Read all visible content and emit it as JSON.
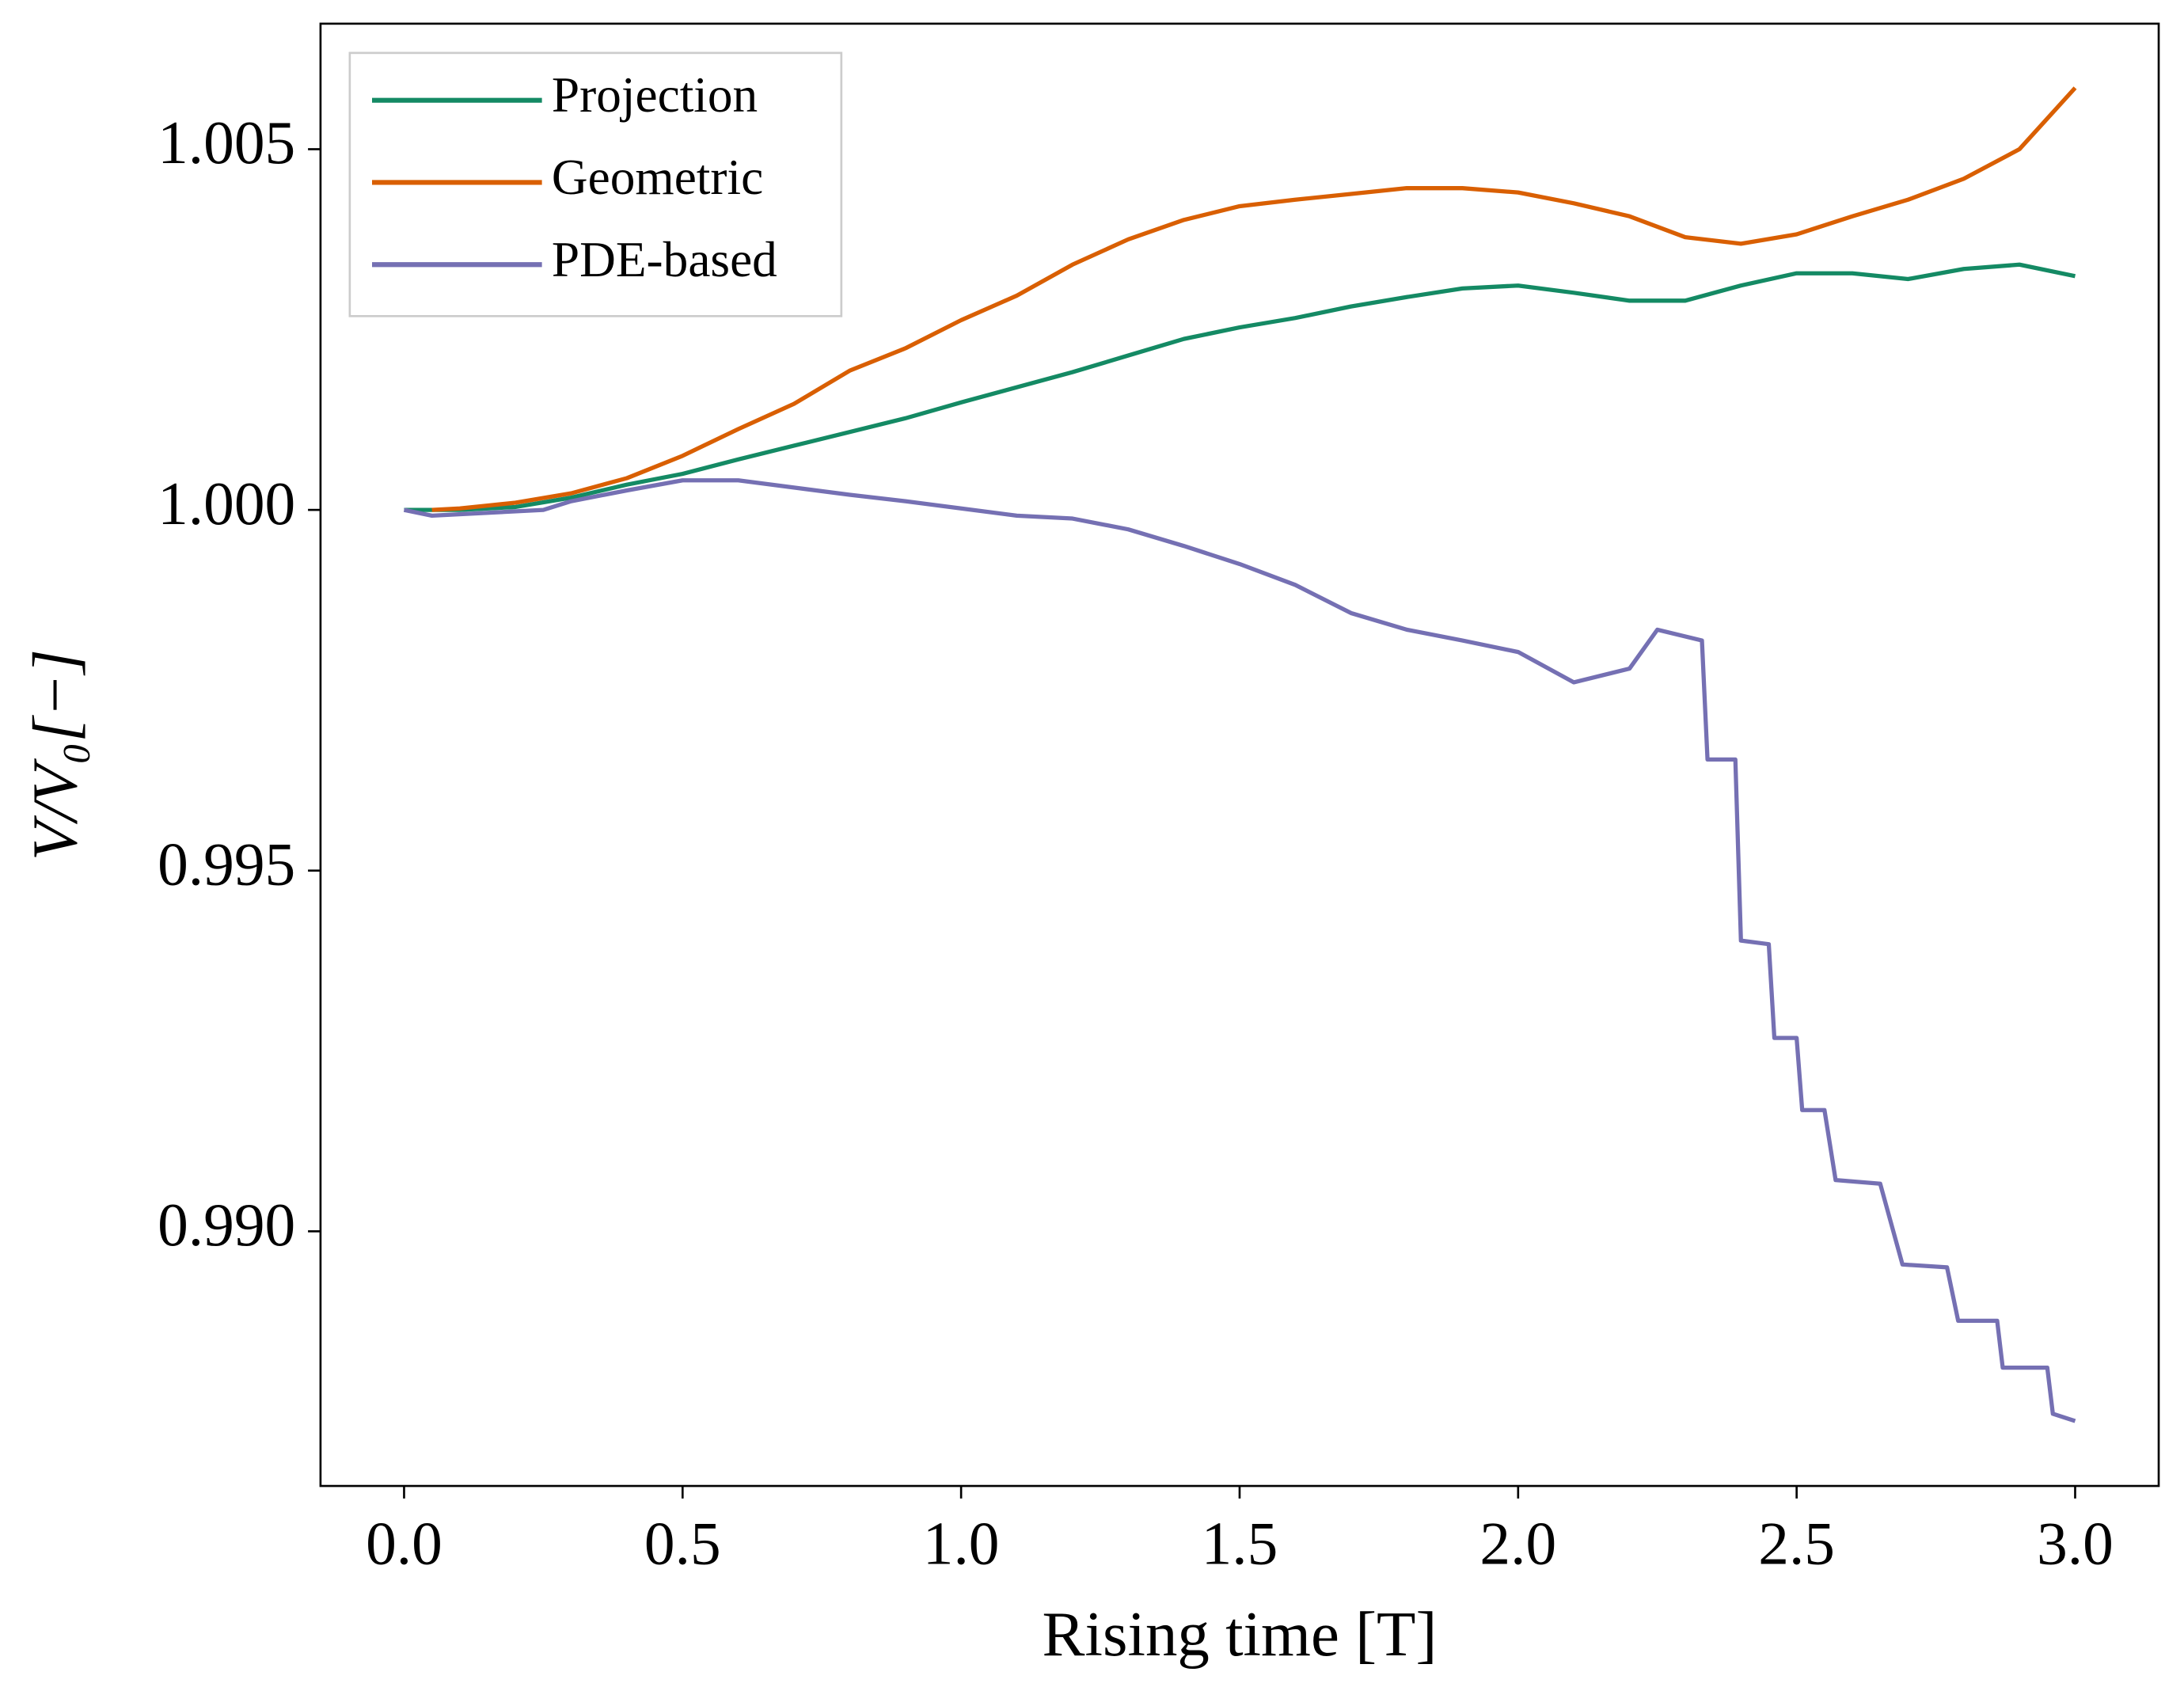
{
  "chart_data": {
    "type": "line",
    "xlabel": "Rising time [T]",
    "ylabel": "V/V₀[−]",
    "xlim": [
      -0.15,
      3.15
    ],
    "ylim": [
      0.98647,
      1.00674
    ],
    "xticks": [
      {
        "value": 0,
        "label": "0.0"
      },
      0.5,
      {
        "value": 1,
        "label": "1.0"
      },
      1.5,
      {
        "value": 2,
        "label": "2.0"
      },
      2.5,
      {
        "value": 3,
        "label": "3.0"
      }
    ],
    "yticks": [
      {
        "value": 0.99,
        "label": "0.990"
      },
      0.995,
      {
        "value": 1,
        "label": "1.000"
      },
      1.005
    ],
    "grid": false,
    "legend": "upper left",
    "series": [
      {
        "name": "Projection",
        "color": "#148a64",
        "x": [
          0,
          0.1,
          0.2,
          0.3,
          0.4,
          0.5,
          0.6,
          0.7,
          0.8,
          0.9,
          1.0,
          1.1,
          1.2,
          1.3,
          1.4,
          1.5,
          1.6,
          1.7,
          1.8,
          1.9,
          2.0,
          2.1,
          2.2,
          2.3,
          2.4,
          2.5,
          2.6,
          2.7,
          2.8,
          2.9,
          3.0
        ],
        "values": [
          1.0,
          1.0,
          1.00004,
          1.00017,
          1.00035,
          1.0005,
          1.0007,
          1.00089,
          1.00108,
          1.00127,
          1.00149,
          1.0017,
          1.00191,
          1.00214,
          1.00237,
          1.00253,
          1.00266,
          1.00282,
          1.00295,
          1.00307,
          1.00311,
          1.00301,
          1.0029,
          1.0029,
          1.00311,
          1.00328,
          1.00328,
          1.0032,
          1.00334,
          1.0034,
          1.00324
        ]
      },
      {
        "name": "Geometric",
        "color": "#d95f02",
        "x": [
          0.05,
          0.1,
          0.2,
          0.3,
          0.4,
          0.5,
          0.6,
          0.7,
          0.8,
          0.9,
          1.0,
          1.1,
          1.2,
          1.3,
          1.4,
          1.5,
          1.6,
          1.7,
          1.8,
          1.9,
          2.0,
          2.1,
          2.2,
          2.3,
          2.4,
          2.5,
          2.6,
          2.7,
          2.8,
          2.9,
          3.0
        ],
        "values": [
          1.0,
          1.00002,
          1.0001,
          1.00023,
          1.00044,
          1.00075,
          1.00112,
          1.00147,
          1.00193,
          1.00224,
          1.00263,
          1.00297,
          1.0034,
          1.00375,
          1.00402,
          1.00421,
          1.0043,
          1.00438,
          1.00446,
          1.00446,
          1.0044,
          1.00425,
          1.00407,
          1.00378,
          1.00369,
          1.00382,
          1.00407,
          1.0043,
          1.00459,
          1.005,
          1.00585
        ]
      },
      {
        "name": "PDE-based",
        "color": "#7570b3",
        "x": [
          0,
          0.05,
          0.25,
          0.3,
          0.4,
          0.5,
          0.6,
          0.7,
          0.8,
          0.9,
          1.0,
          1.1,
          1.2,
          1.3,
          1.4,
          1.5,
          1.6,
          1.7,
          1.8,
          1.9,
          2.0,
          2.1,
          2.2,
          2.25,
          2.33,
          2.34,
          2.39,
          2.4,
          2.45,
          2.46,
          2.5,
          2.51,
          2.55,
          2.57,
          2.65,
          2.69,
          2.77,
          2.79,
          2.86,
          2.87,
          2.95,
          2.96,
          3.0
        ],
        "values": [
          1.0,
          0.99992,
          1.0,
          1.00012,
          1.00027,
          1.00041,
          1.00041,
          1.00031,
          1.00021,
          1.00012,
          1.00002,
          0.99992,
          0.99988,
          0.99973,
          0.9995,
          0.99925,
          0.99896,
          0.99857,
          0.99834,
          0.99819,
          0.99803,
          0.99761,
          0.9978,
          0.99834,
          0.99819,
          0.99654,
          0.99654,
          0.99403,
          0.99398,
          0.99268,
          0.99268,
          0.99168,
          0.99168,
          0.99071,
          0.99066,
          0.98954,
          0.9895,
          0.98876,
          0.98876,
          0.98811,
          0.98811,
          0.98747,
          0.98737
        ]
      }
    ]
  }
}
